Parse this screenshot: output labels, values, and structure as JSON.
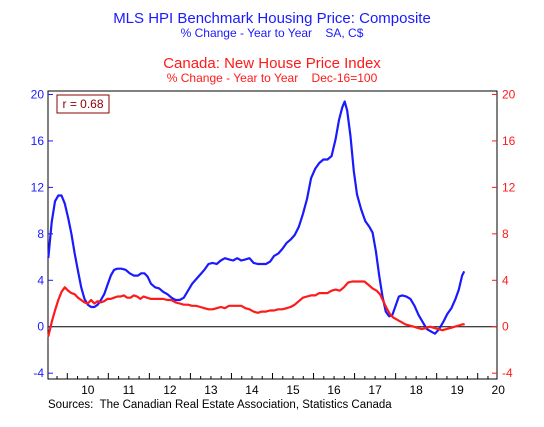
{
  "chart_data": {
    "type": "line",
    "title": "MLS HPI Benchmark Housing Price: Composite",
    "subtitle": "% Change - Year to Year    SA, C$",
    "title2": "Canada: New House Price Index",
    "subtitle2": "% Change - Year to Year    Dec-16=100",
    "annotation": "r = 0.68",
    "source": "Sources:  The Canadian Real Estate Association, Statistics Canada",
    "x_tick_labels": [
      "10",
      "11",
      "12",
      "13",
      "14",
      "15",
      "16",
      "17",
      "18",
      "19",
      "20"
    ],
    "y_tick_labels": [
      "20",
      "16",
      "12",
      "8",
      "4",
      "0",
      "-4"
    ],
    "ylim": [
      -4.5,
      20.3
    ],
    "xlim": [
      2009.53,
      2020.47
    ],
    "grid": false,
    "reference_line": 0,
    "colors": {
      "mls": "#1a1aff",
      "nhpi": "#ff1a1a",
      "axis_left": "#1a1aff",
      "axis_right": "#ff1a1a"
    },
    "series": [
      {
        "name": "MLS HPI Benchmark Housing Price: Composite",
        "axis": "left",
        "points": [
          [
            2009.54,
            6.0
          ],
          [
            2009.62,
            9.0
          ],
          [
            2009.7,
            10.8
          ],
          [
            2009.78,
            11.3
          ],
          [
            2009.86,
            11.3
          ],
          [
            2009.94,
            10.6
          ],
          [
            2010.02,
            9.4
          ],
          [
            2010.1,
            8.0
          ],
          [
            2010.18,
            6.3
          ],
          [
            2010.26,
            4.8
          ],
          [
            2010.34,
            3.4
          ],
          [
            2010.42,
            2.4
          ],
          [
            2010.5,
            1.9
          ],
          [
            2010.58,
            1.7
          ],
          [
            2010.66,
            1.7
          ],
          [
            2010.74,
            1.9
          ],
          [
            2010.82,
            2.3
          ],
          [
            2010.9,
            2.8
          ],
          [
            2010.98,
            3.6
          ],
          [
            2011.06,
            4.4
          ],
          [
            2011.14,
            4.9
          ],
          [
            2011.22,
            5.0
          ],
          [
            2011.32,
            5.0
          ],
          [
            2011.42,
            4.9
          ],
          [
            2011.52,
            4.6
          ],
          [
            2011.62,
            4.4
          ],
          [
            2011.72,
            4.4
          ],
          [
            2011.8,
            4.6
          ],
          [
            2011.88,
            4.6
          ],
          [
            2011.96,
            4.3
          ],
          [
            2012.04,
            3.7
          ],
          [
            2012.14,
            3.4
          ],
          [
            2012.24,
            3.3
          ],
          [
            2012.34,
            3.0
          ],
          [
            2012.44,
            2.8
          ],
          [
            2012.54,
            2.5
          ],
          [
            2012.64,
            2.3
          ],
          [
            2012.74,
            2.3
          ],
          [
            2012.84,
            2.5
          ],
          [
            2012.94,
            3.1
          ],
          [
            2013.04,
            3.7
          ],
          [
            2013.14,
            4.1
          ],
          [
            2013.24,
            4.5
          ],
          [
            2013.34,
            4.9
          ],
          [
            2013.44,
            5.4
          ],
          [
            2013.54,
            5.5
          ],
          [
            2013.64,
            5.4
          ],
          [
            2013.74,
            5.7
          ],
          [
            2013.84,
            5.9
          ],
          [
            2013.94,
            5.8
          ],
          [
            2014.04,
            5.7
          ],
          [
            2014.14,
            5.9
          ],
          [
            2014.24,
            5.7
          ],
          [
            2014.34,
            5.8
          ],
          [
            2014.44,
            5.9
          ],
          [
            2014.54,
            5.5
          ],
          [
            2014.64,
            5.4
          ],
          [
            2014.74,
            5.4
          ],
          [
            2014.84,
            5.4
          ],
          [
            2014.94,
            5.6
          ],
          [
            2015.04,
            6.1
          ],
          [
            2015.14,
            6.3
          ],
          [
            2015.24,
            6.7
          ],
          [
            2015.34,
            7.2
          ],
          [
            2015.44,
            7.5
          ],
          [
            2015.54,
            7.9
          ],
          [
            2015.64,
            8.6
          ],
          [
            2015.74,
            9.7
          ],
          [
            2015.84,
            11.0
          ],
          [
            2015.94,
            12.8
          ],
          [
            2016.04,
            13.6
          ],
          [
            2016.14,
            14.1
          ],
          [
            2016.24,
            14.4
          ],
          [
            2016.34,
            14.4
          ],
          [
            2016.44,
            14.7
          ],
          [
            2016.54,
            16.2
          ],
          [
            2016.62,
            17.8
          ],
          [
            2016.7,
            18.9
          ],
          [
            2016.76,
            19.4
          ],
          [
            2016.82,
            18.6
          ],
          [
            2016.9,
            16.4
          ],
          [
            2016.98,
            13.4
          ],
          [
            2017.06,
            11.4
          ],
          [
            2017.16,
            10.1
          ],
          [
            2017.26,
            9.1
          ],
          [
            2017.36,
            8.6
          ],
          [
            2017.44,
            8.1
          ],
          [
            2017.52,
            6.5
          ],
          [
            2017.6,
            4.4
          ],
          [
            2017.68,
            2.6
          ],
          [
            2017.76,
            1.3
          ],
          [
            2017.84,
            0.9
          ],
          [
            2017.92,
            1.0
          ],
          [
            2018.0,
            1.8
          ],
          [
            2018.08,
            2.6
          ],
          [
            2018.16,
            2.7
          ],
          [
            2018.26,
            2.6
          ],
          [
            2018.36,
            2.4
          ],
          [
            2018.46,
            1.8
          ],
          [
            2018.56,
            1.0
          ],
          [
            2018.66,
            0.4
          ],
          [
            2018.76,
            -0.2
          ],
          [
            2018.86,
            -0.4
          ],
          [
            2018.96,
            -0.6
          ],
          [
            2019.06,
            -0.2
          ],
          [
            2019.16,
            0.4
          ],
          [
            2019.26,
            1.1
          ],
          [
            2019.36,
            1.6
          ],
          [
            2019.46,
            2.4
          ],
          [
            2019.54,
            3.2
          ],
          [
            2019.62,
            4.4
          ],
          [
            2019.66,
            4.7
          ]
        ]
      },
      {
        "name": "Canada: New House Price Index",
        "axis": "right",
        "points": [
          [
            2009.54,
            -0.8
          ],
          [
            2009.62,
            0.4
          ],
          [
            2009.7,
            1.4
          ],
          [
            2009.78,
            2.3
          ],
          [
            2009.86,
            3.0
          ],
          [
            2009.94,
            3.4
          ],
          [
            2010.02,
            3.1
          ],
          [
            2010.1,
            2.9
          ],
          [
            2010.18,
            2.8
          ],
          [
            2010.26,
            2.5
          ],
          [
            2010.34,
            2.3
          ],
          [
            2010.42,
            2.1
          ],
          [
            2010.5,
            2.0
          ],
          [
            2010.58,
            2.3
          ],
          [
            2010.66,
            2.0
          ],
          [
            2010.74,
            2.2
          ],
          [
            2010.82,
            2.1
          ],
          [
            2010.9,
            2.2
          ],
          [
            2010.98,
            2.4
          ],
          [
            2011.06,
            2.4
          ],
          [
            2011.14,
            2.5
          ],
          [
            2011.22,
            2.6
          ],
          [
            2011.3,
            2.6
          ],
          [
            2011.38,
            2.7
          ],
          [
            2011.46,
            2.5
          ],
          [
            2011.54,
            2.5
          ],
          [
            2011.62,
            2.7
          ],
          [
            2011.7,
            2.6
          ],
          [
            2011.78,
            2.4
          ],
          [
            2011.86,
            2.6
          ],
          [
            2011.94,
            2.5
          ],
          [
            2012.04,
            2.4
          ],
          [
            2012.14,
            2.4
          ],
          [
            2012.24,
            2.4
          ],
          [
            2012.34,
            2.4
          ],
          [
            2012.44,
            2.3
          ],
          [
            2012.54,
            2.3
          ],
          [
            2012.64,
            2.1
          ],
          [
            2012.74,
            2.0
          ],
          [
            2012.84,
            1.9
          ],
          [
            2012.94,
            1.9
          ],
          [
            2013.04,
            1.8
          ],
          [
            2013.14,
            1.8
          ],
          [
            2013.24,
            1.7
          ],
          [
            2013.34,
            1.6
          ],
          [
            2013.44,
            1.5
          ],
          [
            2013.54,
            1.5
          ],
          [
            2013.64,
            1.6
          ],
          [
            2013.74,
            1.7
          ],
          [
            2013.84,
            1.6
          ],
          [
            2013.94,
            1.8
          ],
          [
            2014.04,
            1.8
          ],
          [
            2014.14,
            1.8
          ],
          [
            2014.24,
            1.8
          ],
          [
            2014.34,
            1.6
          ],
          [
            2014.44,
            1.5
          ],
          [
            2014.54,
            1.3
          ],
          [
            2014.64,
            1.2
          ],
          [
            2014.74,
            1.3
          ],
          [
            2014.84,
            1.3
          ],
          [
            2014.94,
            1.4
          ],
          [
            2015.04,
            1.4
          ],
          [
            2015.14,
            1.5
          ],
          [
            2015.24,
            1.5
          ],
          [
            2015.34,
            1.6
          ],
          [
            2015.44,
            1.7
          ],
          [
            2015.54,
            1.9
          ],
          [
            2015.64,
            2.2
          ],
          [
            2015.74,
            2.5
          ],
          [
            2015.84,
            2.6
          ],
          [
            2015.94,
            2.7
          ],
          [
            2016.04,
            2.7
          ],
          [
            2016.14,
            2.9
          ],
          [
            2016.24,
            2.9
          ],
          [
            2016.34,
            2.9
          ],
          [
            2016.44,
            3.1
          ],
          [
            2016.54,
            3.2
          ],
          [
            2016.64,
            3.1
          ],
          [
            2016.74,
            3.4
          ],
          [
            2016.84,
            3.8
          ],
          [
            2016.94,
            3.9
          ],
          [
            2017.04,
            3.9
          ],
          [
            2017.14,
            3.9
          ],
          [
            2017.24,
            3.9
          ],
          [
            2017.34,
            3.6
          ],
          [
            2017.44,
            3.3
          ],
          [
            2017.54,
            3.1
          ],
          [
            2017.62,
            2.8
          ],
          [
            2017.7,
            2.2
          ],
          [
            2017.78,
            1.6
          ],
          [
            2017.86,
            1.1
          ],
          [
            2017.94,
            0.8
          ],
          [
            2018.04,
            0.6
          ],
          [
            2018.14,
            0.4
          ],
          [
            2018.24,
            0.2
          ],
          [
            2018.34,
            0.1
          ],
          [
            2018.44,
            0.0
          ],
          [
            2018.54,
            -0.1
          ],
          [
            2018.64,
            -0.2
          ],
          [
            2018.74,
            -0.1
          ],
          [
            2018.84,
            0.0
          ],
          [
            2018.94,
            -0.1
          ],
          [
            2019.04,
            -0.2
          ],
          [
            2019.14,
            -0.3
          ],
          [
            2019.24,
            -0.2
          ],
          [
            2019.34,
            -0.1
          ],
          [
            2019.44,
            0.0
          ],
          [
            2019.54,
            0.1
          ],
          [
            2019.62,
            0.2
          ],
          [
            2019.66,
            0.2
          ]
        ]
      }
    ]
  }
}
